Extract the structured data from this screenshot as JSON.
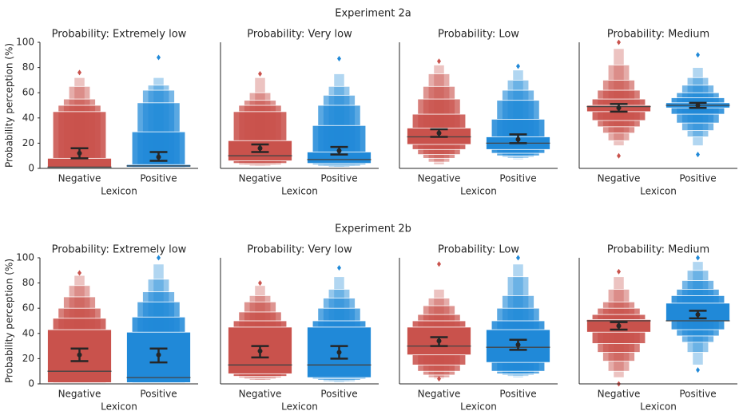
{
  "row_titles": [
    "Experiment 2a",
    "Experiment 2b"
  ],
  "chart_data": [
    {
      "type": "boxen",
      "row": 0,
      "title": "Probability: Extremely low",
      "ylabel": "Probability perception (%)",
      "xlabel": "Lexicon",
      "categories": [
        "Negative",
        "Positive"
      ],
      "ylim": [
        0,
        100
      ],
      "yticks": [
        0,
        20,
        40,
        60,
        80,
        100
      ],
      "boxes": [
        {
          "color": "#c9524c",
          "levels": [
            [
              1,
              8
            ],
            [
              0.5,
              45
            ],
            [
              0.5,
              50
            ],
            [
              0,
              55
            ],
            [
              0,
              65
            ],
            [
              0,
              72
            ]
          ],
          "median": 1,
          "mean": 12,
          "ci": [
            8,
            16
          ],
          "outliers": [
            76
          ]
        },
        {
          "color": "#2089d8",
          "levels": [
            [
              1,
              3
            ],
            [
              0.5,
              29
            ],
            [
              0.5,
              52
            ],
            [
              0,
              62
            ],
            [
              0,
              66
            ],
            [
              0,
              72
            ]
          ],
          "median": 2,
          "mean": 9,
          "ci": [
            6,
            13
          ],
          "outliers": [
            88
          ]
        }
      ]
    },
    {
      "type": "boxen",
      "row": 0,
      "title": "Probability: Very low",
      "xlabel": "Lexicon",
      "categories": [
        "Negative",
        "Positive"
      ],
      "ylim": [
        0,
        100
      ],
      "boxes": [
        {
          "color": "#c9524c",
          "levels": [
            [
              6,
              22
            ],
            [
              4,
              45
            ],
            [
              3,
              50
            ],
            [
              3,
              54
            ],
            [
              2,
              60
            ],
            [
              2,
              72
            ]
          ],
          "median": 10,
          "mean": 16,
          "ci": [
            13,
            19
          ],
          "outliers": [
            75
          ]
        },
        {
          "color": "#2089d8",
          "levels": [
            [
              4,
              13
            ],
            [
              3,
              34
            ],
            [
              2,
              50
            ],
            [
              2,
              58
            ],
            [
              1,
              65
            ],
            [
              1,
              75
            ]
          ],
          "median": 7,
          "mean": 14,
          "ci": [
            11,
            17
          ],
          "outliers": [
            87
          ]
        }
      ]
    },
    {
      "type": "boxen",
      "row": 0,
      "title": "Probability: Low",
      "xlabel": "Lexicon",
      "categories": [
        "Negative",
        "Positive"
      ],
      "ylim": [
        0,
        100
      ],
      "boxes": [
        {
          "color": "#c9524c",
          "levels": [
            [
              19,
              32
            ],
            [
              15,
              43
            ],
            [
              11,
              55
            ],
            [
              8,
              65
            ],
            [
              5,
              75
            ],
            [
              3,
              82
            ]
          ],
          "median": 25,
          "mean": 28,
          "ci": [
            25,
            31
          ],
          "outliers": [
            85
          ]
        },
        {
          "color": "#2089d8",
          "levels": [
            [
              15,
              25
            ],
            [
              12,
              39
            ],
            [
              10,
              54
            ],
            [
              9,
              62
            ],
            [
              8,
              70
            ],
            [
              7,
              78
            ]
          ],
          "median": 20,
          "mean": 23,
          "ci": [
            20,
            27
          ],
          "outliers": [
            81
          ]
        }
      ]
    },
    {
      "type": "boxen",
      "row": 0,
      "title": "Probability: Medium",
      "xlabel": "Lexicon",
      "categories": [
        "Negative",
        "Positive"
      ],
      "ylim": [
        0,
        100
      ],
      "boxes": [
        {
          "color": "#c9524c",
          "levels": [
            [
              45,
              50
            ],
            [
              38,
              55
            ],
            [
              33,
              62
            ],
            [
              28,
              70
            ],
            [
              22,
              82
            ],
            [
              18,
              95
            ]
          ],
          "median": 49,
          "mean": 48,
          "ci": [
            45,
            51
          ],
          "outliers": [
            10,
            100
          ]
        },
        {
          "color": "#2089d8",
          "levels": [
            [
              48,
              52
            ],
            [
              43,
              56
            ],
            [
              36,
              60
            ],
            [
              30,
              66
            ],
            [
              25,
              72
            ],
            [
              18,
              80
            ]
          ],
          "median": 50,
          "mean": 50,
          "ci": [
            48,
            52
          ],
          "outliers": [
            11,
            90
          ]
        }
      ]
    },
    {
      "type": "boxen",
      "row": 1,
      "title": "Probability: Extremely low",
      "ylabel": "Probability perception (%)",
      "xlabel": "Lexicon",
      "categories": [
        "Negative",
        "Positive"
      ],
      "ylim": [
        0,
        100
      ],
      "yticks": [
        0,
        20,
        40,
        60,
        80,
        100
      ],
      "boxes": [
        {
          "color": "#c9524c",
          "levels": [
            [
              1,
              43
            ],
            [
              0.5,
              52
            ],
            [
              0,
              60
            ],
            [
              0,
              69
            ],
            [
              0,
              78
            ],
            [
              0,
              86
            ]
          ],
          "median": 10,
          "mean": 23,
          "ci": [
            18,
            28
          ],
          "outliers": [
            88
          ]
        },
        {
          "color": "#2089d8",
          "levels": [
            [
              1,
              41
            ],
            [
              0.5,
              53
            ],
            [
              0,
              65
            ],
            [
              0,
              73
            ],
            [
              0,
              83
            ],
            [
              0,
              95
            ]
          ],
          "median": 5,
          "mean": 23,
          "ci": [
            17,
            28
          ],
          "outliers": [
            100
          ]
        }
      ]
    },
    {
      "type": "boxen",
      "row": 1,
      "title": "Probability: Very low",
      "xlabel": "Lexicon",
      "categories": [
        "Negative",
        "Positive"
      ],
      "ylim": [
        0,
        100
      ],
      "boxes": [
        {
          "color": "#c9524c",
          "levels": [
            [
              8,
              45
            ],
            [
              6,
              50
            ],
            [
              5,
              57
            ],
            [
              4,
              65
            ],
            [
              3,
              70
            ],
            [
              3,
              78
            ]
          ],
          "median": 15,
          "mean": 26,
          "ci": [
            21,
            30
          ],
          "outliers": [
            80
          ]
        },
        {
          "color": "#2089d8",
          "levels": [
            [
              5,
              45
            ],
            [
              4,
              50
            ],
            [
              3,
              60
            ],
            [
              2,
              68
            ],
            [
              2,
              75
            ],
            [
              1,
              85
            ]
          ],
          "median": 15,
          "mean": 25,
          "ci": [
            20,
            30
          ],
          "outliers": [
            92
          ]
        }
      ]
    },
    {
      "type": "boxen",
      "row": 1,
      "title": "Probability: Low",
      "xlabel": "Lexicon",
      "categories": [
        "Negative",
        "Positive"
      ],
      "ylim": [
        0,
        100
      ],
      "boxes": [
        {
          "color": "#c9524c",
          "levels": [
            [
              23,
              45
            ],
            [
              15,
              50
            ],
            [
              10,
              55
            ],
            [
              7,
              62
            ],
            [
              5,
              68
            ],
            [
              4,
              75
            ]
          ],
          "median": 30,
          "mean": 34,
          "ci": [
            30,
            37
          ],
          "outliers": [
            4,
            95
          ]
        },
        {
          "color": "#2089d8",
          "levels": [
            [
              17,
              43
            ],
            [
              10,
              50
            ],
            [
              8,
              60
            ],
            [
              7,
              70
            ],
            [
              6,
              85
            ],
            [
              5,
              95
            ]
          ],
          "median": 29,
          "mean": 31,
          "ci": [
            27,
            35
          ],
          "outliers": [
            100
          ]
        }
      ]
    },
    {
      "type": "boxen",
      "row": 1,
      "title": "Probability: Medium",
      "xlabel": "Lexicon",
      "categories": [
        "Negative",
        "Positive"
      ],
      "ylim": [
        0,
        100
      ],
      "boxes": [
        {
          "color": "#c9524c",
          "levels": [
            [
              41,
              51
            ],
            [
              32,
              55
            ],
            [
              25,
              60
            ],
            [
              18,
              65
            ],
            [
              10,
              75
            ],
            [
              5,
              85
            ]
          ],
          "median": 50,
          "mean": 46,
          "ci": [
            43,
            49
          ],
          "outliers": [
            0,
            89
          ]
        },
        {
          "color": "#2089d8",
          "levels": [
            [
              50,
              64
            ],
            [
              43,
              70
            ],
            [
              38,
              75
            ],
            [
              33,
              82
            ],
            [
              25,
              90
            ],
            [
              15,
              97
            ]
          ],
          "median": 50,
          "mean": 55,
          "ci": [
            52,
            58
          ],
          "outliers": [
            11,
            100
          ]
        }
      ]
    }
  ]
}
